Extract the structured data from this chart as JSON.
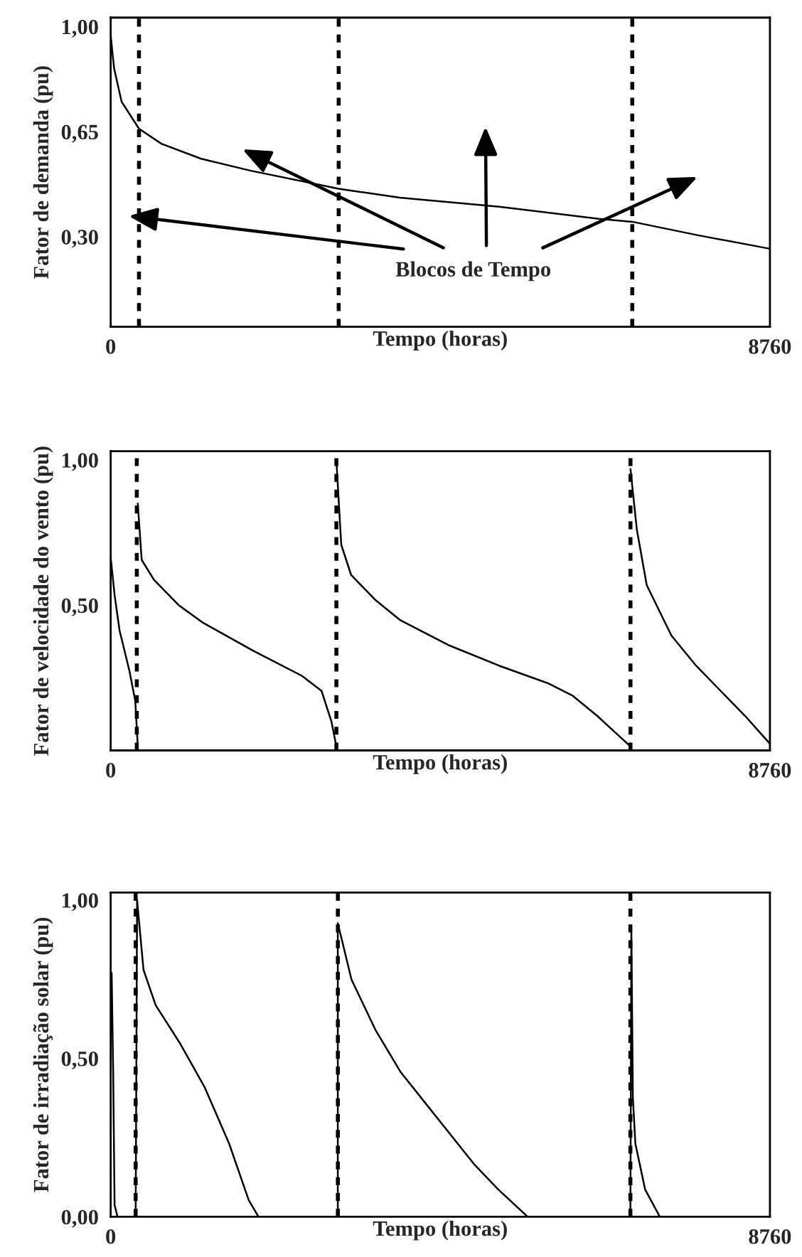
{
  "chart_data": [
    {
      "type": "line",
      "xlabel": "Tempo (horas)",
      "ylabel": "Fator de demanda (pu)",
      "xlim": [
        0,
        8760
      ],
      "xticks": [
        0,
        8760
      ],
      "ylim": [
        0,
        1.03
      ],
      "yticks": [
        {
          "value": 1.0,
          "label": "1,00"
        },
        {
          "value": 0.65,
          "label": "0,65"
        },
        {
          "value": 0.3,
          "label": "0,30"
        }
      ],
      "grid": false,
      "legend": false,
      "marker": "none",
      "line_style": "solid",
      "series": [
        {
          "color": "#000000",
          "x": [
            0,
            46,
            145,
            376,
            673,
            1201,
            1862,
            3030,
            3842,
            5162,
            6483,
            6931,
            7803,
            8760
          ],
          "values": [
            0.97,
            0.86,
            0.75,
            0.66,
            0.61,
            0.56,
            0.52,
            0.46,
            0.43,
            0.4,
            0.36,
            0.35,
            0.305,
            0.26
          ]
        }
      ],
      "ref_lines": [
        {
          "axis": "x",
          "value": 376,
          "color": "#000000",
          "line_style": "dashed"
        },
        {
          "axis": "x",
          "value": 3030,
          "color": "#000000",
          "line_style": "dashed"
        },
        {
          "axis": "x",
          "value": 6931,
          "color": "#000000",
          "line_style": "dashed"
        }
      ],
      "annotations": [
        "Blocos de Tempo"
      ]
    },
    {
      "type": "line",
      "xlabel": "Tempo (horas)",
      "ylabel": "Fator de velocidade do vento (pu)",
      "xlim": [
        0,
        8760
      ],
      "xticks": [
        0,
        8760
      ],
      "ylim": [
        0,
        1.03
      ],
      "yticks": [
        {
          "value": 1.0,
          "label": "1,00"
        },
        {
          "value": 0.5,
          "label": "0,50"
        }
      ],
      "grid": false,
      "legend": false,
      "marker": "none",
      "line_style": "solid",
      "series": [
        {
          "color": "#000000",
          "x": [
            0,
            52,
            118,
            249,
            327,
            360
          ],
          "values": [
            0.665,
            0.535,
            0.413,
            0.274,
            0.17,
            0.014
          ]
        },
        {
          "color": "#000000",
          "x": [
            360,
            412,
            576,
            904,
            1231,
            1886,
            2540,
            2802,
            2933,
            2999
          ],
          "values": [
            0.85,
            0.656,
            0.587,
            0.5,
            0.439,
            0.344,
            0.257,
            0.205,
            0.1,
            0.014
          ]
        },
        {
          "color": "#000000",
          "x": [
            2999,
            3064,
            3195,
            3522,
            3850,
            4504,
            5159,
            5814,
            6141,
            6469,
            6796,
            6907
          ],
          "values": [
            1.0,
            0.708,
            0.604,
            0.517,
            0.448,
            0.361,
            0.292,
            0.231,
            0.188,
            0.118,
            0.04,
            0.014
          ]
        },
        {
          "color": "#000000",
          "x": [
            6907,
            6992,
            7123,
            7450,
            7778,
            8105,
            8433,
            8760
          ],
          "values": [
            0.969,
            0.76,
            0.569,
            0.396,
            0.292,
            0.205,
            0.118,
            0.023
          ]
        }
      ],
      "ref_lines": [
        {
          "axis": "x",
          "value": 347,
          "color": "#000000",
          "line_style": "dashed"
        },
        {
          "axis": "x",
          "value": 2999,
          "color": "#000000",
          "line_style": "dashed"
        },
        {
          "axis": "x",
          "value": 6907,
          "color": "#000000",
          "line_style": "dashed"
        }
      ]
    },
    {
      "type": "line",
      "xlabel": "Tempo (horas)",
      "ylabel": "Fator de irradiação solar (pu)",
      "xlim": [
        0,
        8760
      ],
      "xticks": [
        0,
        8760
      ],
      "ylim": [
        0,
        1.024
      ],
      "yticks": [
        {
          "value": 1.0,
          "label": "1,00"
        },
        {
          "value": 0.5,
          "label": "0,50"
        },
        {
          "value": 0.0,
          "label": "0,00"
        }
      ],
      "grid": false,
      "legend": false,
      "marker": "none",
      "line_style": "solid",
      "series": [
        {
          "color": "#000000",
          "x": [
            13,
            33,
            52,
            91,
            332,
            351,
            436,
            598,
            923,
            1249,
            1574,
            1834,
            1964,
            3018,
            3018,
            3200,
            3525,
            3850,
            4175,
            4500,
            4826,
            5151,
            5541,
            6906,
            6919,
            6939,
            6972,
            7102,
            7297,
            8760
          ],
          "values": [
            0.77,
            0.46,
            0.037,
            0,
            0,
            1.0,
            0.78,
            0.668,
            0.547,
            0.409,
            0.231,
            0.053,
            0,
            0,
            0.927,
            0.749,
            0.587,
            0.458,
            0.361,
            0.264,
            0.167,
            0.086,
            0,
            0,
            0.9,
            0.377,
            0.231,
            0.086,
            0,
            0
          ]
        }
      ],
      "ref_lines": [
        {
          "axis": "x",
          "value": 332,
          "color": "#000000",
          "line_style": "dashed"
        },
        {
          "axis": "x",
          "value": 3019,
          "color": "#000000",
          "line_style": "dashed"
        },
        {
          "axis": "x",
          "value": 6906,
          "color": "#000000",
          "line_style": "dashed"
        }
      ]
    }
  ]
}
